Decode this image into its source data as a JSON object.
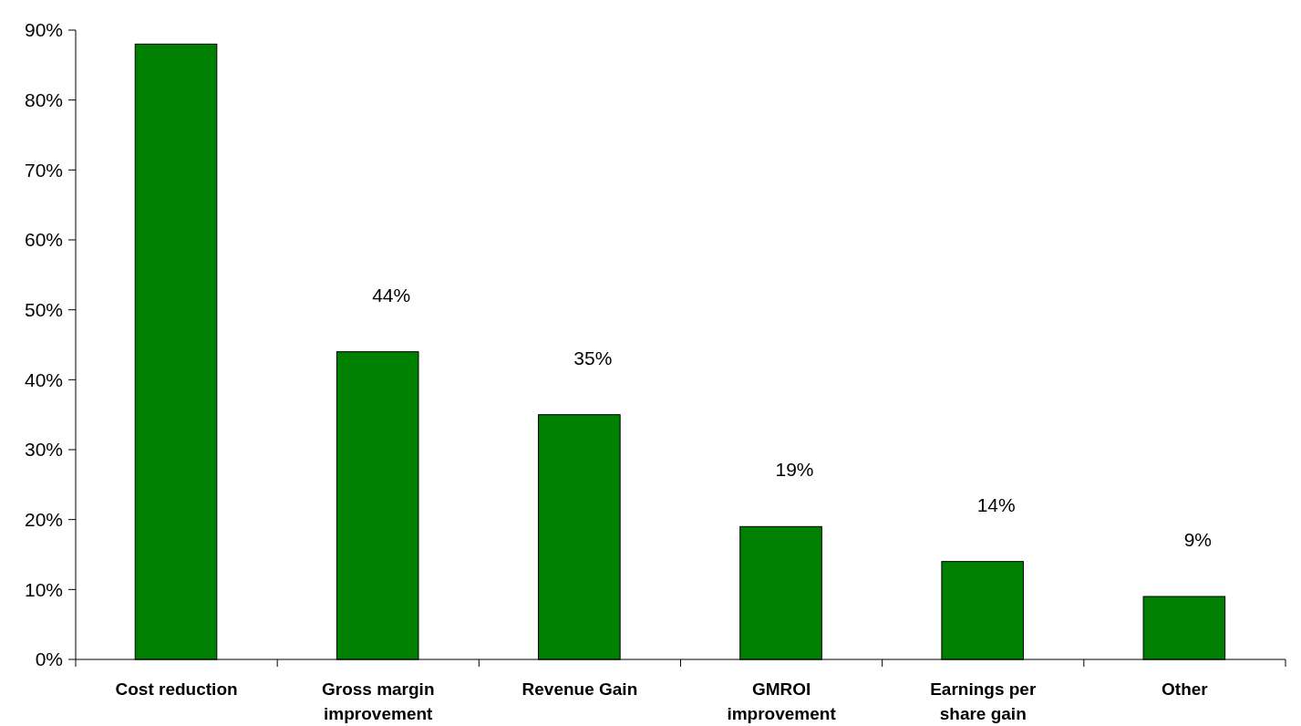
{
  "chart_data": {
    "type": "bar",
    "categories": [
      "Cost reduction",
      "Gross margin improvement",
      "Revenue Gain",
      "GMROI improvement",
      "Earnings per share gain",
      "Other"
    ],
    "values": [
      88,
      44,
      35,
      19,
      14,
      9
    ],
    "value_labels": [
      null,
      "44%",
      "35%",
      "19%",
      "14%",
      "9%"
    ],
    "color": "#008000",
    "ylim": [
      0,
      90
    ],
    "yticks": [
      {
        "value": 0,
        "label": "0%"
      },
      {
        "value": 10,
        "label": "10%"
      },
      {
        "value": 20,
        "label": "20%"
      },
      {
        "value": 30,
        "label": "30%"
      },
      {
        "value": 40,
        "label": "40%"
      },
      {
        "value": 50,
        "label": "50%"
      },
      {
        "value": 60,
        "label": "60%"
      },
      {
        "value": 70,
        "label": "70%"
      },
      {
        "value": 80,
        "label": "80%"
      },
      {
        "value": 90,
        "label": "90%"
      }
    ],
    "grid": false
  }
}
